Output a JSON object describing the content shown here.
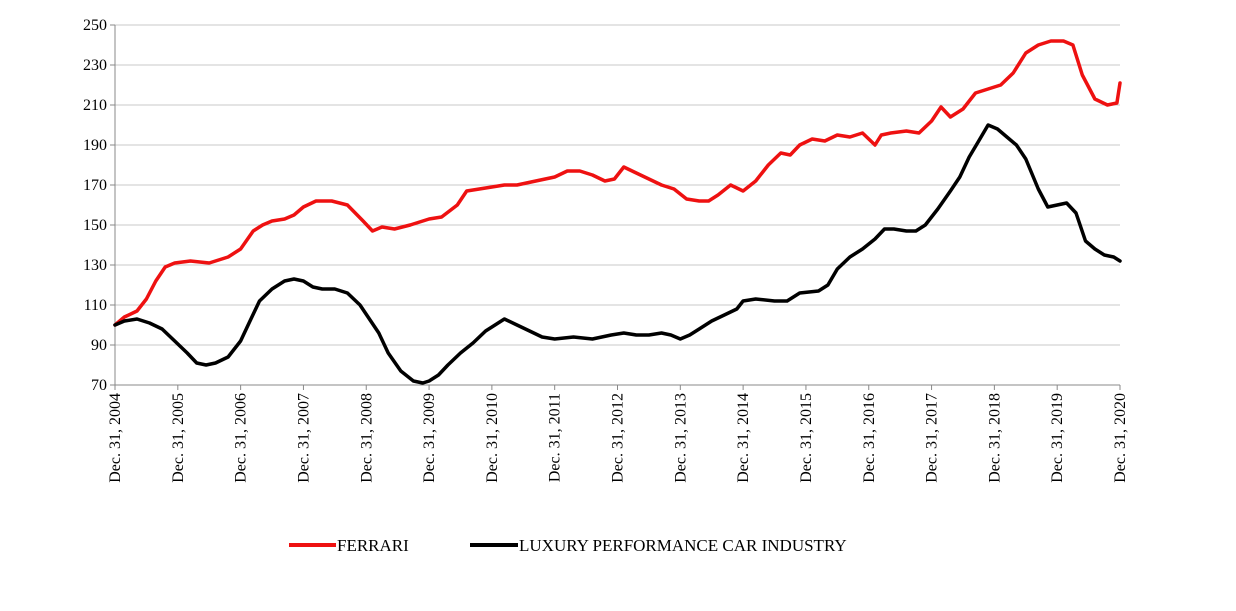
{
  "chart_data": {
    "type": "line",
    "title": "",
    "xlabel": "",
    "ylabel": "",
    "ylim": [
      70,
      250
    ],
    "yticks": [
      70,
      90,
      110,
      130,
      150,
      170,
      190,
      210,
      230,
      250
    ],
    "xlim": [
      2004.0,
      2020.0
    ],
    "xtick_labels": [
      "Dec. 31, 2004",
      "Dec. 31, 2005",
      "Dec. 31, 2006",
      "Dec. 31, 2007",
      "Dec. 31, 2008",
      "Dec. 31, 2009",
      "Dec. 31, 2010",
      "Dec. 31, 2011",
      "Dec. 31, 2012",
      "Dec. 31, 2013",
      "Dec. 31, 2014",
      "Dec. 31, 2015",
      "Dec. 31, 2016",
      "Dec. 31, 2017",
      "Dec. 31, 2018",
      "Dec. 31, 2019",
      "Dec. 31, 2020"
    ],
    "grid": "horizontal",
    "legend_position": "bottom-center",
    "series": [
      {
        "name": "FERRARI",
        "color": "#ee1111",
        "x": [
          2004.0,
          2004.15,
          2004.35,
          2004.5,
          2004.65,
          2004.8,
          2004.95,
          2005.2,
          2005.5,
          2005.8,
          2006.0,
          2006.2,
          2006.35,
          2006.5,
          2006.7,
          2006.85,
          2007.0,
          2007.2,
          2007.45,
          2007.7,
          2007.95,
          2008.1,
          2008.25,
          2008.45,
          2008.7,
          2009.0,
          2009.2,
          2009.45,
          2009.6,
          2009.8,
          2010.0,
          2010.2,
          2010.4,
          2010.7,
          2011.0,
          2011.2,
          2011.4,
          2011.6,
          2011.8,
          2011.95,
          2012.1,
          2012.3,
          2012.5,
          2012.7,
          2012.9,
          2013.1,
          2013.3,
          2013.45,
          2013.6,
          2013.8,
          2014.0,
          2014.2,
          2014.4,
          2014.6,
          2014.75,
          2014.9,
          2015.1,
          2015.3,
          2015.5,
          2015.7,
          2015.9,
          2016.1,
          2016.2,
          2016.35,
          2016.6,
          2016.8,
          2017.0,
          2017.15,
          2017.3,
          2017.5,
          2017.7,
          2017.9,
          2018.1,
          2018.3,
          2018.5,
          2018.7,
          2018.9,
          2019.1,
          2019.25,
          2019.4,
          2019.6,
          2019.8,
          2019.95,
          2020.0
        ],
        "y": [
          100,
          104,
          107,
          113,
          122,
          129,
          131,
          132,
          131,
          134,
          138,
          147,
          150,
          152,
          153,
          155,
          159,
          162,
          162,
          160,
          152,
          147,
          149,
          148,
          150,
          153,
          154,
          160,
          167,
          168,
          169,
          170,
          170,
          172,
          174,
          177,
          177,
          175,
          172,
          173,
          179,
          176,
          173,
          170,
          168,
          163,
          162,
          162,
          165,
          170,
          167,
          172,
          180,
          186,
          185,
          190,
          193,
          192,
          195,
          194,
          196,
          190,
          195,
          196,
          197,
          196,
          202,
          209,
          204,
          208,
          216,
          218,
          220,
          226,
          236,
          240,
          242,
          242,
          240,
          225,
          213,
          210,
          211,
          221
        ]
      },
      {
        "name": "LUXURY PERFORMANCE CAR INDUSTRY",
        "color": "#000000",
        "x": [
          2004.0,
          2004.15,
          2004.35,
          2004.55,
          2004.75,
          2004.95,
          2005.15,
          2005.3,
          2005.45,
          2005.6,
          2005.8,
          2006.0,
          2006.15,
          2006.3,
          2006.5,
          2006.7,
          2006.85,
          2007.0,
          2007.15,
          2007.3,
          2007.5,
          2007.7,
          2007.9,
          2008.05,
          2008.2,
          2008.35,
          2008.55,
          2008.75,
          2008.9,
          2009.0,
          2009.15,
          2009.3,
          2009.5,
          2009.7,
          2009.9,
          2010.0,
          2010.2,
          2010.4,
          2010.6,
          2010.8,
          2011.0,
          2011.3,
          2011.6,
          2011.9,
          2012.1,
          2012.3,
          2012.5,
          2012.7,
          2012.85,
          2013.0,
          2013.15,
          2013.3,
          2013.5,
          2013.7,
          2013.9,
          2014.0,
          2014.2,
          2014.5,
          2014.7,
          2014.9,
          2015.2,
          2015.35,
          2015.5,
          2015.7,
          2015.9,
          2016.1,
          2016.25,
          2016.4,
          2016.6,
          2016.75,
          2016.9,
          2017.1,
          2017.3,
          2017.45,
          2017.6,
          2017.75,
          2017.9,
          2018.05,
          2018.2,
          2018.35,
          2018.5,
          2018.7,
          2018.85,
          2019.0,
          2019.15,
          2019.3,
          2019.45,
          2019.6,
          2019.75,
          2019.9,
          2020.0
        ],
        "y": [
          100,
          102,
          103,
          101,
          98,
          92,
          86,
          81,
          80,
          81,
          84,
          92,
          102,
          112,
          118,
          122,
          123,
          122,
          119,
          118,
          118,
          116,
          110,
          103,
          96,
          86,
          77,
          72,
          71,
          72,
          75,
          80,
          86,
          91,
          97,
          99,
          103,
          100,
          97,
          94,
          93,
          94,
          93,
          95,
          96,
          95,
          95,
          96,
          95,
          93,
          95,
          98,
          102,
          105,
          108,
          112,
          113,
          112,
          112,
          116,
          117,
          120,
          128,
          134,
          138,
          143,
          148,
          148,
          147,
          147,
          150,
          158,
          167,
          174,
          184,
          192,
          200,
          198,
          194,
          190,
          183,
          168,
          159,
          160,
          161,
          156,
          142,
          138,
          135,
          134,
          132
        ]
      }
    ]
  }
}
